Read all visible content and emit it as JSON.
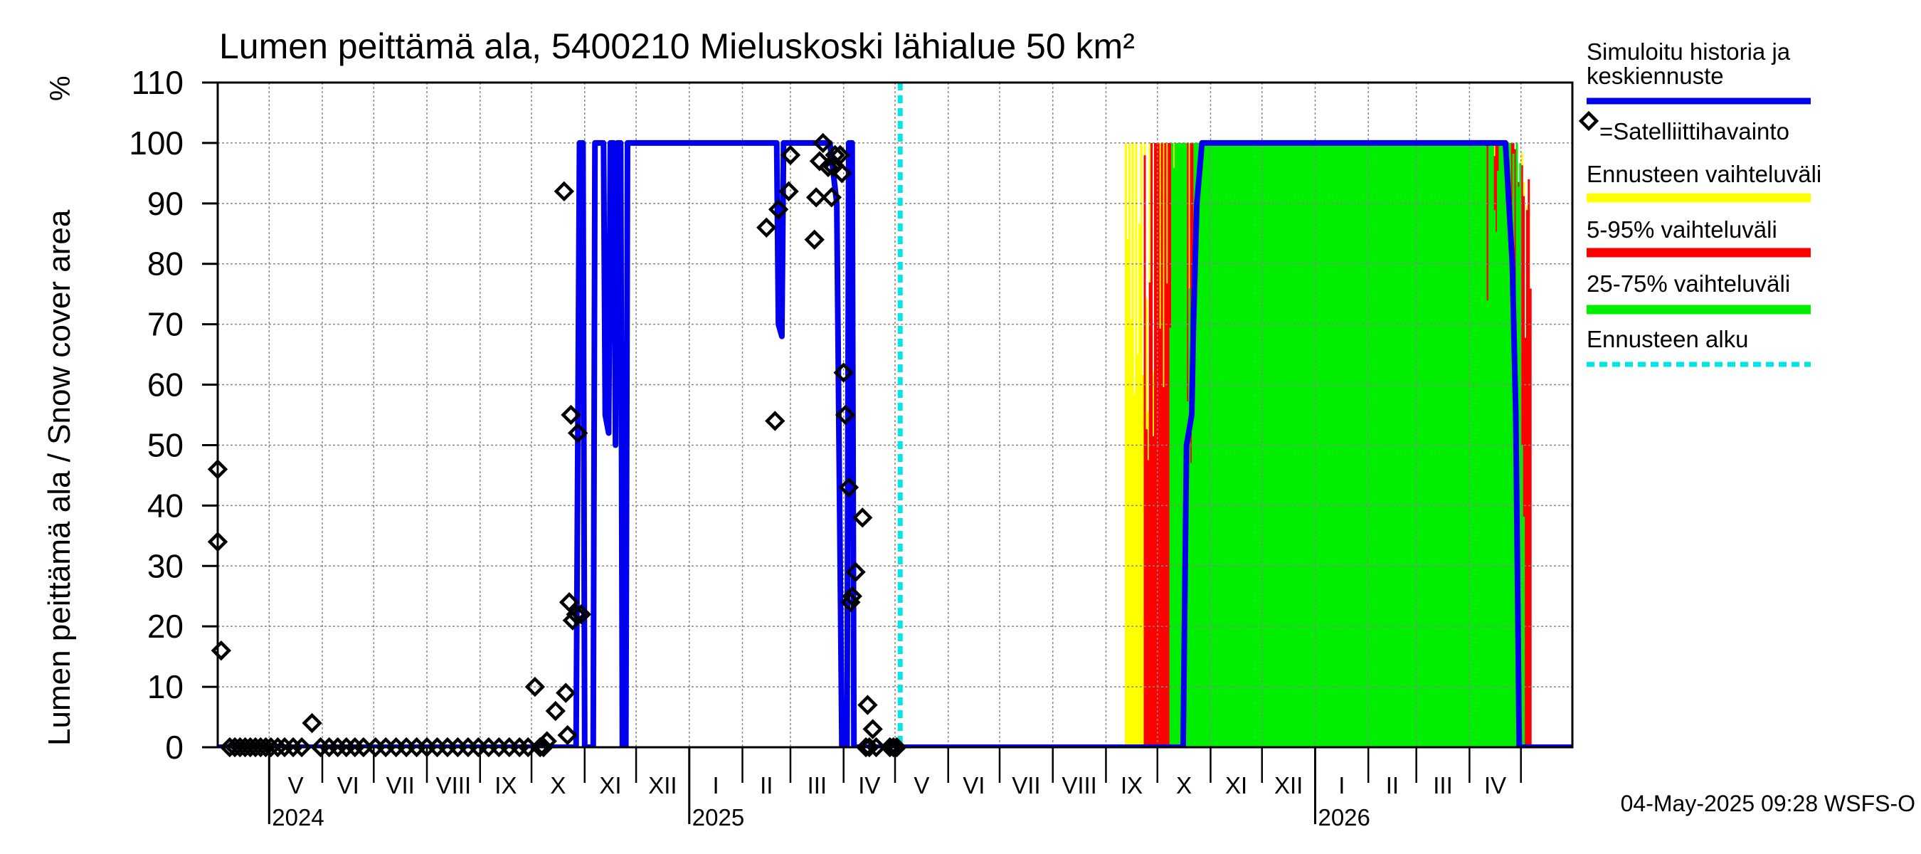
{
  "chart_data": {
    "type": "area",
    "title": "Lumen peittämä ala, 5400210 Mieluskoski lähialue 50 km²",
    "ylabel": "Lumen peittämä ala / Snow cover area",
    "yunit": "%",
    "ylim": [
      0,
      110
    ],
    "yticks": [
      0,
      10,
      20,
      30,
      40,
      50,
      60,
      70,
      80,
      90,
      100,
      110
    ],
    "x_start": "2024-04-01",
    "x_end": "2026-05-31",
    "months": [
      {
        "label": "V",
        "month": "2024-05"
      },
      {
        "label": "VI",
        "month": "2024-06"
      },
      {
        "label": "VII",
        "month": "2024-07"
      },
      {
        "label": "VIII",
        "month": "2024-08"
      },
      {
        "label": "IX",
        "month": "2024-09"
      },
      {
        "label": "X",
        "month": "2024-10"
      },
      {
        "label": "XI",
        "month": "2024-11"
      },
      {
        "label": "XII",
        "month": "2024-12"
      },
      {
        "label": "I",
        "month": "2025-01"
      },
      {
        "label": "II",
        "month": "2025-02"
      },
      {
        "label": "III",
        "month": "2025-03"
      },
      {
        "label": "IV",
        "month": "2025-04"
      },
      {
        "label": "V",
        "month": "2025-05"
      },
      {
        "label": "VI",
        "month": "2025-06"
      },
      {
        "label": "VII",
        "month": "2025-07"
      },
      {
        "label": "VIII",
        "month": "2025-08"
      },
      {
        "label": "IX",
        "month": "2025-09"
      },
      {
        "label": "X",
        "month": "2025-10"
      },
      {
        "label": "XI",
        "month": "2025-11"
      },
      {
        "label": "XII",
        "month": "2025-12"
      },
      {
        "label": "I",
        "month": "2026-01"
      },
      {
        "label": "II",
        "month": "2026-02"
      },
      {
        "label": "III",
        "month": "2026-03"
      },
      {
        "label": "IV",
        "month": "2026-04"
      }
    ],
    "years": [
      {
        "label": "2024",
        "date": "2024-05-01"
      },
      {
        "label": "2025",
        "date": "2025-01-01"
      },
      {
        "label": "2026",
        "date": "2026-01-01"
      }
    ],
    "forecast_start": "2025-05-04",
    "series": [
      {
        "name": "Simuloitu historia ja keskiennuste",
        "color": "#0000ee",
        "points": [
          [
            "2024-04-01",
            0
          ],
          [
            "2024-10-27",
            0
          ],
          [
            "2024-10-29",
            100
          ],
          [
            "2024-10-31",
            100
          ],
          [
            "2024-11-01",
            0
          ],
          [
            "2024-11-06",
            0
          ],
          [
            "2024-11-07",
            100
          ],
          [
            "2024-11-12",
            100
          ],
          [
            "2024-11-13",
            55
          ],
          [
            "2024-11-15",
            52
          ],
          [
            "2024-11-16",
            100
          ],
          [
            "2024-11-18",
            100
          ],
          [
            "2024-11-19",
            50
          ],
          [
            "2024-11-20",
            100
          ],
          [
            "2024-11-22",
            100
          ],
          [
            "2024-11-23",
            0
          ],
          [
            "2024-11-25",
            0
          ],
          [
            "2024-11-26",
            100
          ],
          [
            "2024-12-02",
            100
          ],
          [
            "2025-02-21",
            100
          ],
          [
            "2025-02-22",
            70
          ],
          [
            "2025-02-24",
            68
          ],
          [
            "2025-02-25",
            100
          ],
          [
            "2025-03-24",
            100
          ],
          [
            "2025-03-28",
            90
          ],
          [
            "2025-03-31",
            0
          ],
          [
            "2025-04-03",
            0
          ],
          [
            "2025-04-04",
            100
          ],
          [
            "2025-04-06",
            100
          ],
          [
            "2025-04-07",
            0
          ],
          [
            "2025-10-16",
            0
          ],
          [
            "2025-10-18",
            50
          ],
          [
            "2025-10-21",
            55
          ],
          [
            "2025-10-22",
            70
          ],
          [
            "2025-10-24",
            90
          ],
          [
            "2025-10-27",
            100
          ],
          [
            "2026-04-22",
            100
          ],
          [
            "2026-04-26",
            80
          ],
          [
            "2026-04-28",
            55
          ],
          [
            "2026-04-30",
            0
          ],
          [
            "2026-05-31",
            0
          ]
        ]
      }
    ],
    "observations": {
      "name": "Satelliittihavainto",
      "values": [
        [
          "2024-04-01",
          34
        ],
        [
          "2024-04-01",
          46
        ],
        [
          "2024-04-03",
          16
        ],
        [
          "2024-04-08",
          0
        ],
        [
          "2024-04-11",
          0
        ],
        [
          "2024-04-14",
          0
        ],
        [
          "2024-04-17",
          0
        ],
        [
          "2024-04-20",
          0
        ],
        [
          "2024-04-23",
          0
        ],
        [
          "2024-04-26",
          0
        ],
        [
          "2024-04-29",
          0
        ],
        [
          "2024-05-02",
          0
        ],
        [
          "2024-05-06",
          0
        ],
        [
          "2024-05-10",
          0
        ],
        [
          "2024-05-15",
          0
        ],
        [
          "2024-05-20",
          0
        ],
        [
          "2024-05-26",
          4
        ],
        [
          "2024-05-31",
          0
        ],
        [
          "2024-06-05",
          0
        ],
        [
          "2024-06-10",
          0
        ],
        [
          "2024-06-15",
          0
        ],
        [
          "2024-06-20",
          0
        ],
        [
          "2024-06-25",
          0
        ],
        [
          "2024-07-02",
          0
        ],
        [
          "2024-07-08",
          0
        ],
        [
          "2024-07-14",
          0
        ],
        [
          "2024-07-20",
          0
        ],
        [
          "2024-07-26",
          0
        ],
        [
          "2024-08-01",
          0
        ],
        [
          "2024-08-07",
          0
        ],
        [
          "2024-08-13",
          0
        ],
        [
          "2024-08-19",
          0
        ],
        [
          "2024-08-25",
          0
        ],
        [
          "2024-08-31",
          0
        ],
        [
          "2024-09-06",
          0
        ],
        [
          "2024-09-12",
          0
        ],
        [
          "2024-09-18",
          0
        ],
        [
          "2024-09-24",
          0
        ],
        [
          "2024-09-29",
          0
        ],
        [
          "2024-10-03",
          10
        ],
        [
          "2024-10-06",
          0
        ],
        [
          "2024-10-08",
          0
        ],
        [
          "2024-10-10",
          1
        ],
        [
          "2024-10-15",
          6
        ],
        [
          "2024-10-20",
          92
        ],
        [
          "2024-10-21",
          9
        ],
        [
          "2024-10-22",
          2
        ],
        [
          "2024-10-23",
          24
        ],
        [
          "2024-10-24",
          55
        ],
        [
          "2024-10-25",
          21
        ],
        [
          "2024-10-27",
          22
        ],
        [
          "2024-10-28",
          52
        ],
        [
          "2024-10-30",
          22
        ],
        [
          "2025-02-15",
          86
        ],
        [
          "2025-02-20",
          54
        ],
        [
          "2025-02-22",
          89
        ],
        [
          "2025-02-28",
          92
        ],
        [
          "2025-03-01",
          98
        ],
        [
          "2025-03-15",
          84
        ],
        [
          "2025-03-16",
          91
        ],
        [
          "2025-03-18",
          97
        ],
        [
          "2025-03-20",
          100
        ],
        [
          "2025-03-23",
          96
        ],
        [
          "2025-03-25",
          91
        ],
        [
          "2025-03-26",
          96
        ],
        [
          "2025-03-27",
          98
        ],
        [
          "2025-03-30",
          98
        ],
        [
          "2025-03-31",
          95
        ],
        [
          "2025-04-01",
          62
        ],
        [
          "2025-04-02",
          55
        ],
        [
          "2025-04-04",
          43
        ],
        [
          "2025-04-05",
          24
        ],
        [
          "2025-04-06",
          25
        ],
        [
          "2025-04-08",
          29
        ],
        [
          "2025-04-12",
          38
        ],
        [
          "2025-04-14",
          0
        ],
        [
          "2025-04-15",
          7
        ],
        [
          "2025-04-16",
          0
        ],
        [
          "2025-04-18",
          3
        ],
        [
          "2025-04-20",
          0
        ],
        [
          "2025-04-28",
          0
        ],
        [
          "2025-04-30",
          0
        ],
        [
          "2025-05-02",
          0
        ]
      ]
    },
    "bands": [
      {
        "name": "Ennusteen vaihteluväli",
        "color": "#ffff00",
        "rise": [
          "2025-09-12",
          "2025-10-31"
        ],
        "melt": [
          "2026-03-18",
          "2026-05-06"
        ]
      },
      {
        "name": "5-95% vaihteluväli",
        "color": "#ff0000",
        "rise": [
          "2025-09-23",
          "2025-10-20"
        ],
        "melt": [
          "2026-03-25",
          "2026-05-07"
        ]
      },
      {
        "name": "25-75% vaihteluväli",
        "color": "#00ee00",
        "rise": [
          "2025-10-08",
          "2025-10-22"
        ],
        "melt": [
          "2026-04-11",
          "2026-05-03"
        ]
      }
    ],
    "legend": [
      {
        "label": "Simuloitu historia ja keskiennuste",
        "style": "line",
        "color": "#0000ee"
      },
      {
        "label": "=Satelliittihavainto",
        "style": "diamond",
        "color": "#000000"
      },
      {
        "label": "Ennusteen vaihteluväli",
        "style": "line",
        "color": "#ffff00"
      },
      {
        "label": "5-95% vaihteluväli",
        "style": "line",
        "color": "#ff0000"
      },
      {
        "label": "25-75% vaihteluväli",
        "style": "line",
        "color": "#00ee00"
      },
      {
        "label": "Ennusteen alku",
        "style": "dashed",
        "color": "#00e5e5"
      }
    ],
    "footer": "04-May-2025 09:28 WSFS-O"
  }
}
